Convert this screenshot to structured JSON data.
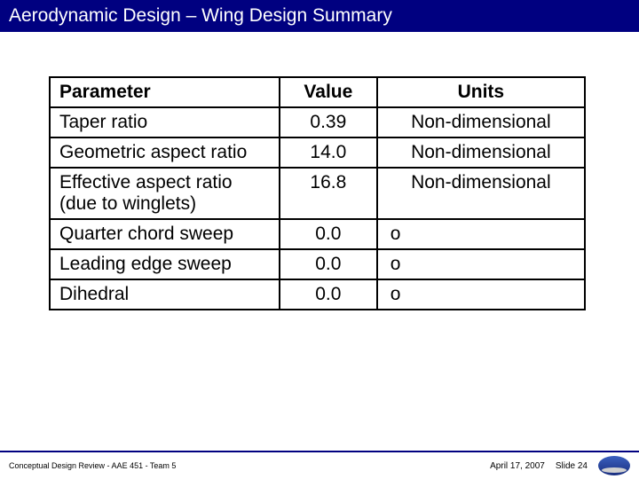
{
  "title": "Aerodynamic Design – Wing Design Summary",
  "table": {
    "headers": {
      "param": "Parameter",
      "value": "Value",
      "units": "Units"
    },
    "rows": [
      {
        "param": "Taper ratio",
        "value": "0.39",
        "units": "Non-dimensional",
        "units_centered": true
      },
      {
        "param": "Geometric aspect ratio",
        "value": "14.0",
        "units": "Non-dimensional",
        "units_centered": true
      },
      {
        "param": "Effective aspect ratio (due to winglets)",
        "value": "16.8",
        "units": "Non-dimensional",
        "units_centered": true
      },
      {
        "param": "Quarter chord sweep",
        "value": "0.0",
        "units": "o",
        "units_centered": false
      },
      {
        "param": "Leading edge sweep",
        "value": "0.0",
        "units": "o",
        "units_centered": false
      },
      {
        "param": "Dihedral",
        "value": "0.0",
        "units": "o",
        "units_centered": false
      }
    ]
  },
  "footer": {
    "left": "Conceptual Design Review - AAE 451 - Team 5",
    "date": "April 17, 2007",
    "slide": "Slide 24"
  }
}
